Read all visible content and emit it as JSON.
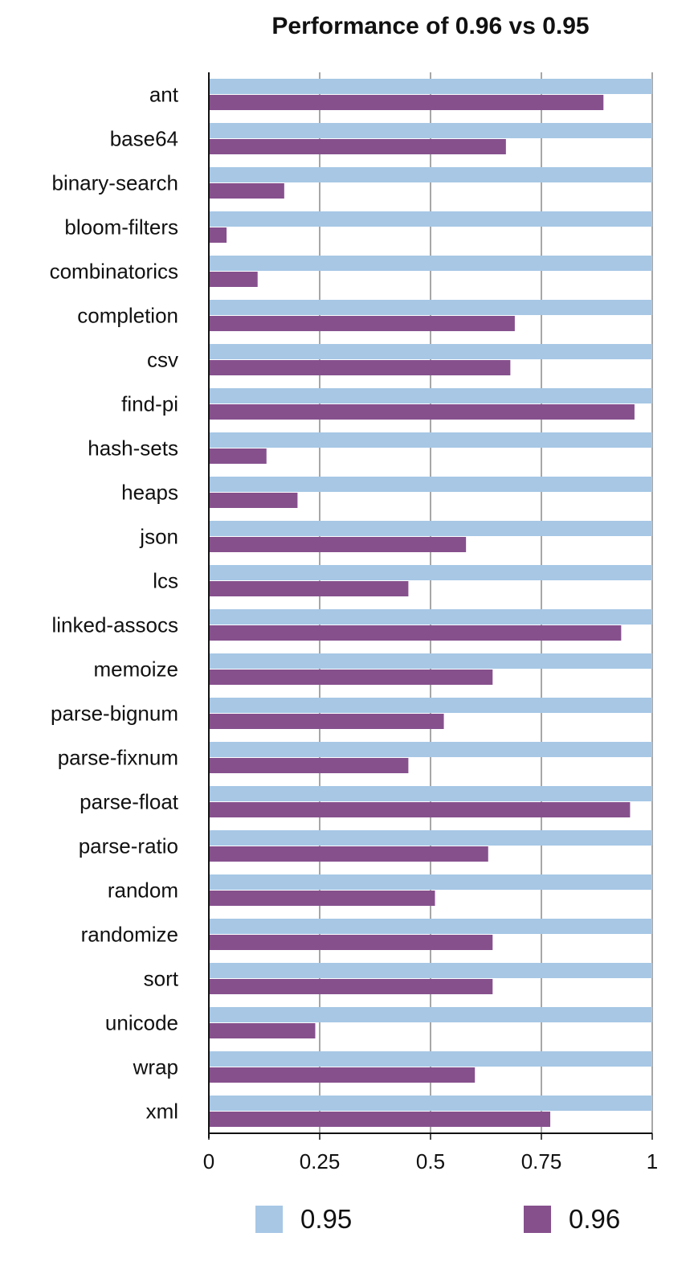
{
  "chart_data": {
    "type": "bar",
    "orientation": "horizontal",
    "title": "Performance of 0.96 vs 0.95",
    "xlabel": "",
    "ylabel": "",
    "xlim": [
      0,
      1
    ],
    "x_ticks": [
      "0",
      "0.25",
      "0.5",
      "0.75",
      "1"
    ],
    "x_tick_values": [
      0,
      0.25,
      0.5,
      0.75,
      1
    ],
    "grid": true,
    "legend_position": "bottom",
    "categories": [
      "ant",
      "base64",
      "binary-search",
      "bloom-filters",
      "combinatorics",
      "completion",
      "csv",
      "find-pi",
      "hash-sets",
      "heaps",
      "json",
      "lcs",
      "linked-assocs",
      "memoize",
      "parse-bignum",
      "parse-fixnum",
      "parse-float",
      "parse-ratio",
      "random",
      "randomize",
      "sort",
      "unicode",
      "wrap",
      "xml"
    ],
    "series": [
      {
        "name": "0.95",
        "color": "#a7c7e5",
        "values": [
          1,
          1,
          1,
          1,
          1,
          1,
          1,
          1,
          1,
          1,
          1,
          1,
          1,
          1,
          1,
          1,
          1,
          1,
          1,
          1,
          1,
          1,
          1,
          1
        ]
      },
      {
        "name": "0.96",
        "color": "#86508d",
        "values": [
          0.89,
          0.67,
          0.17,
          0.04,
          0.11,
          0.69,
          0.68,
          0.96,
          0.13,
          0.2,
          0.58,
          0.45,
          0.93,
          0.64,
          0.53,
          0.45,
          0.95,
          0.63,
          0.51,
          0.64,
          0.64,
          0.24,
          0.6,
          0.77
        ]
      }
    ]
  }
}
